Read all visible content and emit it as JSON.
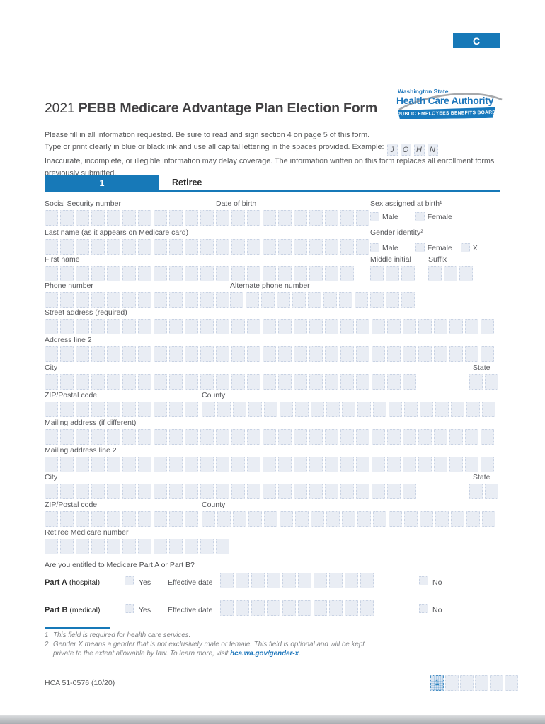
{
  "tab_label": "C",
  "logo": {
    "line1": "Washington State",
    "line2": "Health Care Authority",
    "banner": "PUBLIC EMPLOYEES BENEFITS BOARD"
  },
  "title": {
    "year": "2021",
    "rest": " PEBB Medicare Advantage Plan Election Form"
  },
  "intro": {
    "line1": "Please fill in all information requested. Be sure to read and sign section 4 on page 5 of this form.",
    "line2": "Type or print clearly in blue or black ink and use all capital lettering in the spaces provided. Example:",
    "example_letters": [
      "J",
      "O",
      "H",
      "N"
    ],
    "line3": "Inaccurate, incomplete, or illegible information may delay coverage. The information written on this form replaces all enrollment forms previously submitted."
  },
  "section": {
    "number": "1",
    "title": "Retiree"
  },
  "fields": {
    "ssn": {
      "label": "Social Security number",
      "boxes": 11
    },
    "dob": {
      "label": "Date of birth",
      "boxes": 10
    },
    "sex": {
      "label": "Sex assigned at birth¹",
      "options": [
        "Male",
        "Female"
      ]
    },
    "gender": {
      "label": "Gender identity²",
      "options": [
        "Male",
        "Female",
        "X"
      ]
    },
    "last_name": {
      "label": "Last name (as it appears on Medicare card)",
      "boxes": 21
    },
    "first_name": {
      "label": "First name",
      "boxes": 20
    },
    "middle_initial": {
      "label": "Middle initial",
      "boxes": 3
    },
    "suffix": {
      "label": "Suffix",
      "boxes": 3
    },
    "phone": {
      "label": "Phone number",
      "boxes": 12
    },
    "alt_phone": {
      "label": "Alternate phone number",
      "boxes": 12
    },
    "street": {
      "label": "Street address (required)",
      "boxes": 29
    },
    "address2": {
      "label": "Address line 2",
      "boxes": 29
    },
    "city": {
      "label": "City",
      "boxes": 24
    },
    "state": {
      "label": "State",
      "boxes": 2
    },
    "zip": {
      "label": "ZIP/Postal code",
      "boxes": 10
    },
    "county": {
      "label": "County",
      "boxes": 19
    },
    "mailing": {
      "label": "Mailing address (if different)",
      "boxes": 29
    },
    "mailing2": {
      "label": "Mailing address line 2",
      "boxes": 29
    },
    "city2": {
      "label": "City",
      "boxes": 24
    },
    "state2": {
      "label": "State",
      "boxes": 2
    },
    "zip2": {
      "label": "ZIP/Postal code",
      "boxes": 10
    },
    "county2": {
      "label": "County",
      "boxes": 19
    },
    "medicare": {
      "label": "Retiree Medicare number",
      "boxes": 12
    }
  },
  "medicare_question": "Are you entitled to Medicare Part A or Part B?",
  "part_a": {
    "name": "Part A",
    "qualifier": " (hospital)",
    "yes_label": "Yes",
    "effective_label": "Effective date",
    "date_boxes": 10,
    "no_label": "No"
  },
  "part_b": {
    "name": "Part B",
    "qualifier": " (medical)",
    "yes_label": "Yes",
    "effective_label": "Effective date",
    "date_boxes": 10,
    "no_label": "No"
  },
  "footnotes": {
    "fn1": {
      "num": "1",
      "text": "This field is required for health care services."
    },
    "fn2": {
      "num": "2",
      "text_before": "Gender X means a gender that is not exclusively male or female. This field is optional and will be kept private to the extent allowable by law. To learn more, visit ",
      "link": "hca.wa.gov/gender-x",
      "text_after": "."
    }
  },
  "footer": {
    "form_number": "HCA 51-0576 (10/20)",
    "page_boxes": 6,
    "current_page": "1"
  },
  "colors": {
    "accent_blue": "#1779b8",
    "logo_blue": "#1b75bb",
    "cell_fill": "#e9edf4"
  }
}
